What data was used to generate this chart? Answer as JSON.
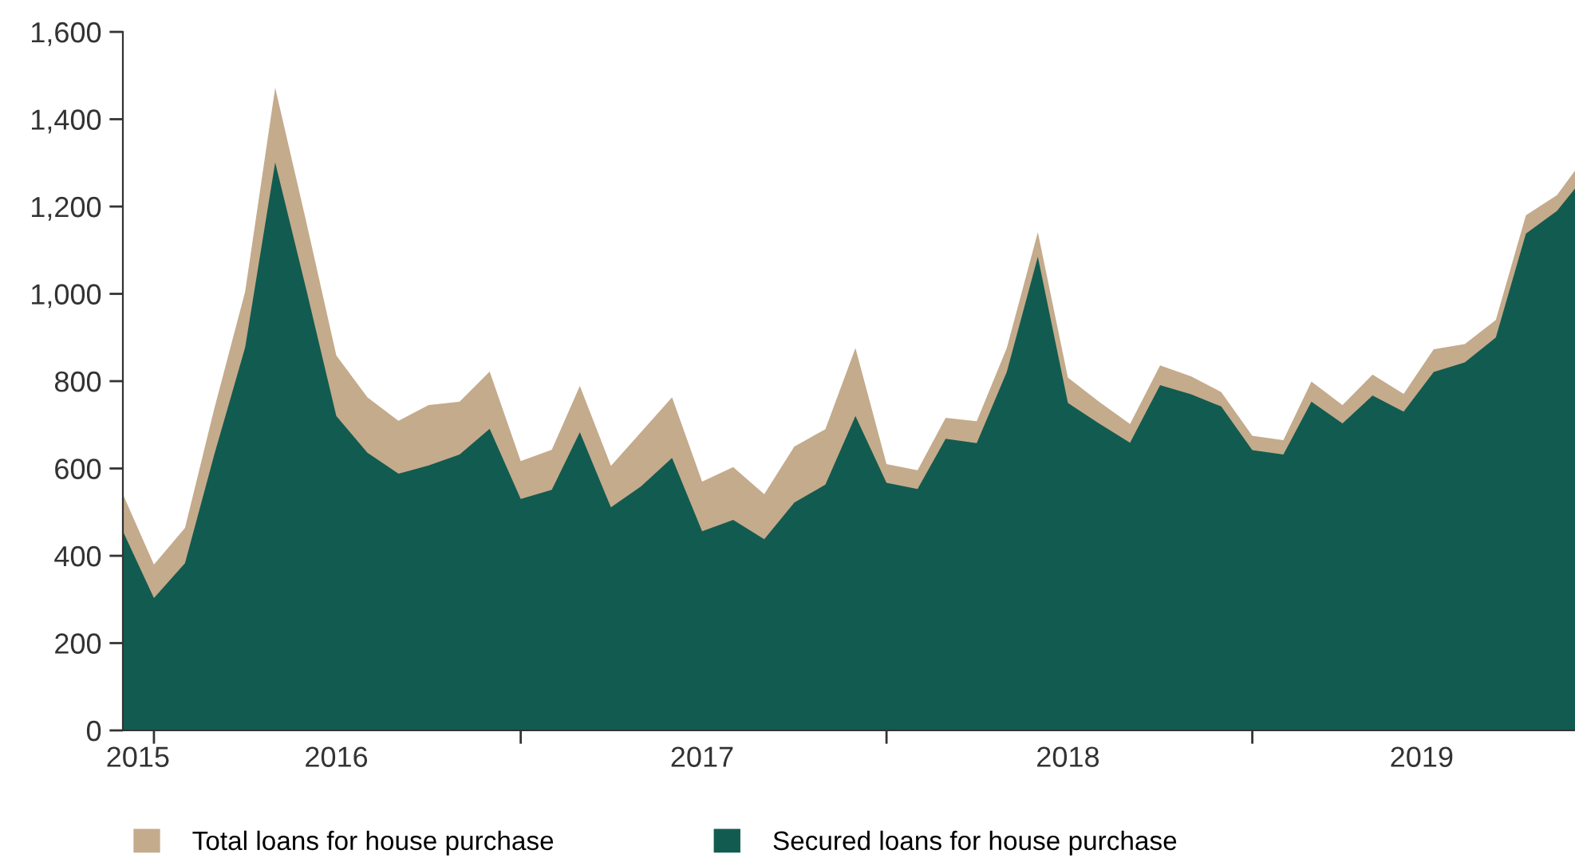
{
  "chart_data": {
    "type": "area",
    "x": [
      "2015-12",
      "2016-01",
      "2016-02",
      "2016-03",
      "2016-04",
      "2016-05",
      "2016-06",
      "2016-07",
      "2016-08",
      "2016-09",
      "2016-10",
      "2016-11",
      "2016-12",
      "2017-01",
      "2017-02",
      "2017-03",
      "2017-04",
      "2017-05",
      "2017-06",
      "2017-07",
      "2017-08",
      "2017-09",
      "2017-10",
      "2017-11",
      "2017-12",
      "2018-01",
      "2018-02",
      "2018-03",
      "2018-04",
      "2018-05",
      "2018-06",
      "2018-07",
      "2018-08",
      "2018-09",
      "2018-10",
      "2018-11",
      "2018-12",
      "2019-01",
      "2019-02",
      "2019-03",
      "2019-04",
      "2019-05",
      "2019-06",
      "2019-07",
      "2019-08",
      "2019-09",
      "2019-10",
      "2019-11",
      "2019-11-19"
    ],
    "series": [
      {
        "name": "Total loans for house purchase",
        "color": "#c4ab8c",
        "values": [
          541,
          380,
          464,
          735,
          1005,
          1472,
          1165,
          859,
          763,
          709,
          745,
          753,
          822,
          617,
          643,
          789,
          606,
          683,
          763,
          570,
          603,
          541,
          650,
          690,
          876,
          610,
          596,
          716,
          708,
          876,
          1141,
          808,
          753,
          702,
          836,
          811,
          775,
          675,
          665,
          799,
          745,
          815,
          771,
          873,
          885,
          940,
          1180,
          1226,
          1282
        ]
      },
      {
        "name": "Secured loans for house purchase",
        "color": "#125b50",
        "values": [
          456,
          303,
          383,
          630,
          877,
          1301,
          1010,
          720,
          636,
          588,
          607,
          632,
          691,
          530,
          551,
          683,
          511,
          559,
          624,
          456,
          482,
          438,
          522,
          563,
          720,
          567,
          553,
          668,
          658,
          821,
          1085,
          750,
          703,
          659,
          791,
          770,
          742,
          642,
          632,
          753,
          703,
          767,
          730,
          821,
          843,
          900,
          1138,
          1190,
          1241
        ]
      }
    ],
    "xlim": [
      "2015-12",
      "2019-11-19"
    ],
    "xticks": [
      {
        "value": "2015-12-16",
        "label": "2015"
      },
      {
        "value": "2016-01",
        "label": null
      },
      {
        "value": "2016-07",
        "label": "2016"
      },
      {
        "value": "2017-01",
        "label": null
      },
      {
        "value": "2017-07",
        "label": "2017"
      },
      {
        "value": "2018-01",
        "label": null
      },
      {
        "value": "2018-07",
        "label": "2018"
      },
      {
        "value": "2019-01",
        "label": null
      },
      {
        "value": "2019-06-19",
        "label": "2019"
      }
    ],
    "ylim": [
      0,
      1600
    ],
    "yticks": [
      0,
      200,
      400,
      600,
      800,
      {
        "value": 1000,
        "label": "1,000"
      },
      {
        "value": 1200,
        "label": "1,200"
      },
      {
        "value": 1400,
        "label": "1,400"
      },
      {
        "value": 1600,
        "label": "1,600"
      }
    ],
    "grid": false,
    "legend": "bottom"
  }
}
